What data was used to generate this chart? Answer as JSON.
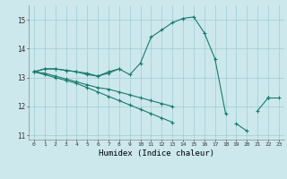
{
  "xlabel": "Humidex (Indice chaleur)",
  "background_color": "#cce8ec",
  "grid_color": "#9ecdd4",
  "line_color": "#1a7a6e",
  "x_values": [
    0,
    1,
    2,
    3,
    4,
    5,
    6,
    7,
    8,
    9,
    10,
    11,
    12,
    13,
    14,
    15,
    16,
    17,
    18,
    19,
    20,
    21,
    22,
    23
  ],
  "line1": [
    13.2,
    13.3,
    13.3,
    13.25,
    13.2,
    13.1,
    13.05,
    13.2,
    13.3,
    13.1,
    13.5,
    14.4,
    14.65,
    14.9,
    15.05,
    15.1,
    14.55,
    13.65,
    11.75,
    null,
    null,
    null,
    12.3,
    12.3
  ],
  "line2": [
    13.2,
    13.3,
    13.3,
    13.25,
    13.2,
    13.15,
    13.05,
    13.15,
    13.3,
    null,
    null,
    null,
    null,
    null,
    null,
    null,
    null,
    null,
    null,
    null,
    null,
    null,
    null,
    null
  ],
  "line3": [
    13.2,
    13.15,
    13.05,
    12.95,
    12.85,
    12.75,
    12.65,
    12.6,
    12.5,
    12.4,
    12.3,
    12.2,
    12.1,
    12.0,
    null,
    null,
    null,
    null,
    null,
    null,
    null,
    11.85,
    12.3,
    null
  ],
  "line4": [
    13.2,
    13.1,
    13.0,
    12.9,
    12.8,
    12.65,
    12.5,
    12.35,
    12.2,
    12.05,
    11.9,
    11.75,
    11.6,
    11.45,
    null,
    null,
    null,
    null,
    null,
    11.4,
    11.15,
    null,
    12.3,
    null
  ],
  "ylim": [
    10.85,
    15.5
  ],
  "xlim": [
    -0.5,
    23.5
  ],
  "yticks": [
    11,
    12,
    13,
    14,
    15
  ],
  "xtick_labels": [
    "0",
    "1",
    "2",
    "3",
    "4",
    "5",
    "6",
    "7",
    "8",
    "9",
    "10",
    "11",
    "12",
    "13",
    "14",
    "15",
    "16",
    "17",
    "18",
    "19",
    "20",
    "21",
    "22",
    "23"
  ]
}
